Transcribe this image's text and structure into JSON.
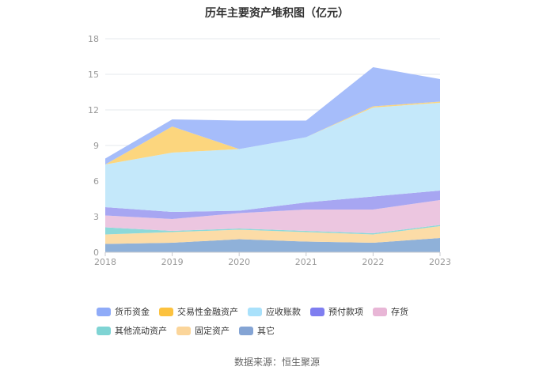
{
  "chart_data": {
    "type": "area",
    "stacked": true,
    "title": "历年主要资产堆积图（亿元）",
    "xlabel": "",
    "ylabel": "",
    "categories": [
      "2018",
      "2019",
      "2020",
      "2021",
      "2022",
      "2023"
    ],
    "ylim": [
      0,
      18
    ],
    "yticks": [
      0,
      3,
      6,
      9,
      12,
      15,
      18
    ],
    "grid": true,
    "legend_position": "bottom",
    "series": [
      {
        "name": "其它",
        "color": "#8fb1d9",
        "values": [
          0.7,
          0.8,
          1.1,
          0.9,
          0.8,
          1.2
        ]
      },
      {
        "name": "固定资产",
        "color": "#fcdca7",
        "values": [
          0.8,
          0.9,
          0.8,
          0.8,
          0.7,
          1.0
        ]
      },
      {
        "name": "其他流动资产",
        "color": "#8dd9d9",
        "values": [
          0.6,
          0.1,
          0.1,
          0.1,
          0.1,
          0.1
        ]
      },
      {
        "name": "存货",
        "color": "#ecc6e0",
        "values": [
          1.0,
          1.0,
          1.3,
          1.8,
          2.0,
          2.1
        ]
      },
      {
        "name": "预付款项",
        "color": "#a7a6f2",
        "values": [
          0.7,
          0.6,
          0.2,
          0.6,
          1.1,
          0.8
        ]
      },
      {
        "name": "应收账款",
        "color": "#c4e8fa",
        "values": [
          3.6,
          5.0,
          5.2,
          5.5,
          7.5,
          7.4
        ]
      },
      {
        "name": "交易性金融资产",
        "color": "#fcd67e",
        "values": [
          0.0,
          2.2,
          0.0,
          0.0,
          0.1,
          0.1
        ]
      },
      {
        "name": "货币资金",
        "color": "#a6bdfa",
        "values": [
          0.5,
          0.6,
          2.4,
          1.4,
          3.3,
          1.9
        ]
      }
    ],
    "legend": [
      {
        "name": "货币资金",
        "color": "#8fabf8"
      },
      {
        "name": "交易性金融资产",
        "color": "#fcc23f"
      },
      {
        "name": "应收账款",
        "color": "#a9e1fb"
      },
      {
        "name": "预付款项",
        "color": "#7f7ef0"
      },
      {
        "name": "存货",
        "color": "#e8b6d6"
      },
      {
        "name": "其他流动资产",
        "color": "#7fd4d4"
      },
      {
        "name": "固定资产",
        "color": "#fbd59a"
      },
      {
        "name": "其它",
        "color": "#84a4d4"
      }
    ]
  },
  "source": "数据来源：恒生聚源"
}
